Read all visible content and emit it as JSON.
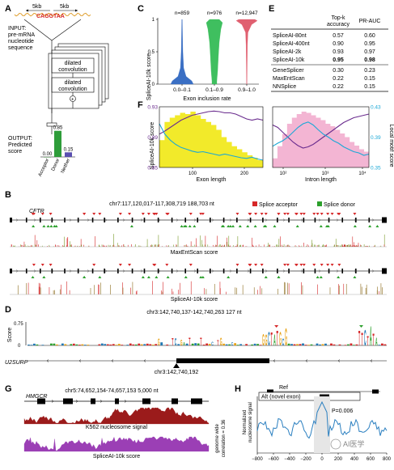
{
  "panels": {
    "A": {
      "label": "A",
      "dist_left": "5kb",
      "dist_right": "5kb",
      "sequence": "CAGGTAA",
      "input_label": "INPUT:\npre-mRNA\nnucleotide\nsequence",
      "layer1": "dilated\nconvolution",
      "layer2": "dilated\nconvolution",
      "output_label": "OUTPUT:\nPredicted\nscore",
      "bars": [
        {
          "name": "Acceptor",
          "value": 0.0,
          "label": "0.00"
        },
        {
          "name": "Donor",
          "value": 0.85,
          "label": "0.85"
        },
        {
          "name": "Neither",
          "value": 0.15,
          "label": "0.15"
        }
      ],
      "colors": {
        "seq_wave": "#e0a030",
        "acceptor": "#2e7d32",
        "donor": "#2e9d3a",
        "neither": "#5a4fb0"
      }
    },
    "B": {
      "label": "B",
      "coords": "chr7:117,120,017-117,308,719  188,703 nt",
      "gene": "CFTR",
      "legend": [
        {
          "label": "Splice acceptor",
          "color": "#d62728"
        },
        {
          "label": "Splice donor",
          "color": "#2ca02c"
        }
      ],
      "track1_label": "MaxEntScan score",
      "track2_label": "SpliceAI-10k score"
    },
    "C": {
      "label": "C",
      "ylabel": "SpliceAI-10k score",
      "xlabel": "Exon inclusion rate",
      "categories": [
        "0.0–0.1",
        "0.1–0.9",
        "0.9–1.0"
      ],
      "counts": [
        "n=859",
        "n=976",
        "n=12,947"
      ],
      "yticks": [
        "0",
        "0.5",
        "1"
      ],
      "colors": [
        "#3a6fc4",
        "#3fbf5f",
        "#e06070"
      ]
    },
    "D": {
      "label": "D",
      "coords": "chr3:142,740,137-142,740,263  127 nt",
      "ylabel": "Score",
      "yticks": [
        "0.75",
        "0"
      ],
      "gene": "U2SURP",
      "pos": "chr3:142,740,192"
    },
    "E": {
      "label": "E",
      "headers": [
        "",
        "Top-k\naccuracy",
        "PR-AUC"
      ],
      "rows": [
        {
          "model": "SpliceAI-80nt",
          "topk": "0.57",
          "prauc": "0.60",
          "bold": false
        },
        {
          "model": "SpliceAI-400nt",
          "topk": "0.90",
          "prauc": "0.95",
          "bold": false
        },
        {
          "model": "SpliceAI-2k",
          "topk": "0.93",
          "prauc": "0.97",
          "bold": false
        },
        {
          "model": "SpliceAI-10k",
          "topk": "0.95",
          "prauc": "0.98",
          "bold": true
        },
        {
          "model": "GeneSplicer",
          "topk": "0.30",
          "prauc": "0.23",
          "bold": false
        },
        {
          "model": "MaxEntScan",
          "topk": "0.22",
          "prauc": "0.15",
          "bold": false
        },
        {
          "model": "NNSplice",
          "topk": "0.22",
          "prauc": "0.15",
          "bold": false
        }
      ]
    },
    "F": {
      "label": "F",
      "ylabel_left": "SpliceAI-10k score",
      "ylabel_right": "Local motif score",
      "left_yticks": [
        "0.93",
        "0.89",
        "0.85"
      ],
      "right_yticks": [
        "0.43",
        "0.39",
        "0.35"
      ],
      "xlabel1": "Exon length",
      "xlabel2": "Intron length",
      "xticks1": [
        "100",
        "200"
      ],
      "xticks2": [
        "10²",
        "10³",
        "10⁴"
      ],
      "colors": {
        "fill1": "#f2ea2a",
        "fill2": "#f3b5d3",
        "purple": "#6a2c8e",
        "cyan": "#1ba8d6"
      }
    },
    "G": {
      "label": "G",
      "gene": "HMGCR",
      "coords": "chr5:74,652,154-74,657,153  5,000 nt",
      "track1_label": "K562 nucleosome signal",
      "track2_label": "SpliceAI-10k score",
      "side_label": "genome wide\ncorrelation = 0.36",
      "colors": {
        "nuc": "#9b1b1b",
        "splice": "#9b3fb5"
      }
    },
    "H": {
      "label": "H",
      "ref_label": "Ref",
      "alt_label": "Alt (novel exon)",
      "pval": "P=0.006",
      "ylabel": "Normalized\nnucleosome signal",
      "xticks": [
        "−800",
        "−600",
        "−400",
        "−200",
        "0",
        "200",
        "400",
        "600",
        "800"
      ],
      "curve_color": "#2a7fc0"
    }
  },
  "watermark": "AI医学"
}
